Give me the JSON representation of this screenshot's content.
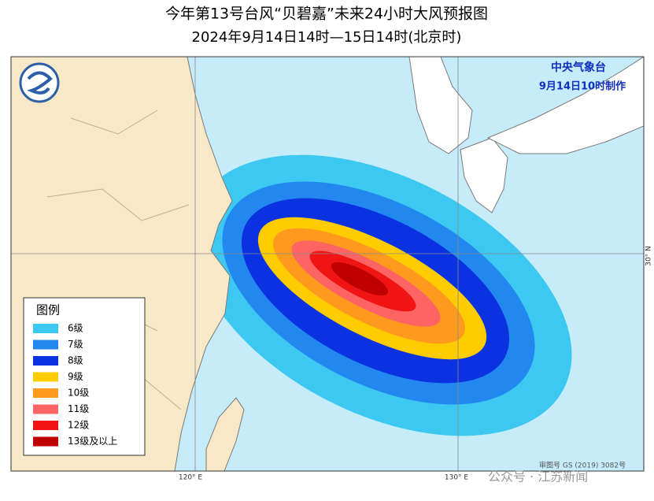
{
  "header": {
    "title": "今年第13号台风“贝碧嘉”未来24小时大风预报图",
    "subtitle": "2024年9月14日14时—15日14时(北京时)"
  },
  "agency": {
    "name": "中央气象台",
    "issued": "9月14日10时制作"
  },
  "legend": {
    "title": "图例",
    "items": [
      {
        "label": "6级",
        "color": "#3cc8f0"
      },
      {
        "label": "7级",
        "color": "#2288f0"
      },
      {
        "label": "8级",
        "color": "#0a32e0"
      },
      {
        "label": "9级",
        "color": "#ffcc00"
      },
      {
        "label": "10级",
        "color": "#ff9a1e"
      },
      {
        "label": "11级",
        "color": "#ff6464"
      },
      {
        "label": "12级",
        "color": "#f01414"
      },
      {
        "label": "13级及以上",
        "color": "#c00000"
      }
    ]
  },
  "axes": {
    "lon_labels": [
      "120° E",
      "130° E"
    ],
    "lat_labels": [
      "30° N"
    ]
  },
  "footer": {
    "map_number": "审图号 GS (2019) 3082号",
    "watermark": "公众号 · 江苏新闻"
  }
}
